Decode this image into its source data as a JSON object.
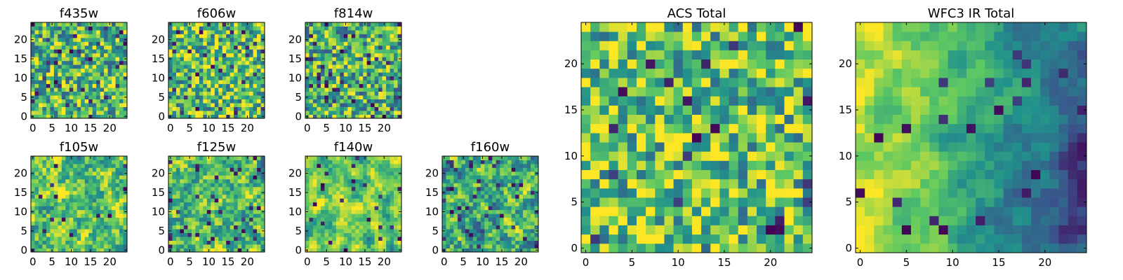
{
  "figure": {
    "colormap": [
      "#440154",
      "#3b528b",
      "#21918c",
      "#5ec962",
      "#fde725"
    ],
    "background": "#ffffff"
  },
  "chart_data": [
    {
      "type": "heatmap",
      "title": "f435w",
      "grid_size": 25,
      "seed": 11,
      "smooth": 0,
      "bias": 0.05,
      "dark_fraction": 0.06,
      "xticks": [
        0,
        5,
        10,
        15,
        20
      ],
      "yticks": [
        0,
        5,
        10,
        15,
        20
      ],
      "tick_labels": {
        "x": [
          "0",
          "5",
          "10",
          "15",
          "20"
        ],
        "y": [
          "0",
          "5",
          "10",
          "15",
          "20"
        ]
      },
      "xlim": [
        0,
        25
      ],
      "ylim": [
        0,
        25
      ]
    },
    {
      "type": "heatmap",
      "title": "f606w",
      "grid_size": 25,
      "seed": 23,
      "smooth": 0,
      "bias": 0.08,
      "dark_fraction": 0.05,
      "xticks": [
        0,
        5,
        10,
        15,
        20
      ],
      "yticks": [
        0,
        5,
        10,
        15,
        20
      ],
      "tick_labels": {
        "x": [
          "0",
          "5",
          "10",
          "15",
          "20"
        ],
        "y": [
          "0",
          "5",
          "10",
          "15",
          "20"
        ]
      },
      "xlim": [
        0,
        25
      ],
      "ylim": [
        0,
        25
      ]
    },
    {
      "type": "heatmap",
      "title": "f814w",
      "grid_size": 25,
      "seed": 37,
      "smooth": 0,
      "bias": 0.02,
      "dark_fraction": 0.07,
      "xticks": [
        0,
        5,
        10,
        15,
        20
      ],
      "yticks": [
        0,
        5,
        10,
        15,
        20
      ],
      "tick_labels": {
        "x": [
          "0",
          "5",
          "10",
          "15",
          "20"
        ],
        "y": [
          "0",
          "5",
          "10",
          "15",
          "20"
        ]
      },
      "xlim": [
        0,
        25
      ],
      "ylim": [
        0,
        25
      ]
    },
    {
      "type": "heatmap",
      "title": "f105w",
      "grid_size": 25,
      "seed": 41,
      "smooth": 1,
      "bias": 0.1,
      "dark_fraction": 0.03,
      "xticks": [
        0,
        5,
        10,
        15,
        20
      ],
      "yticks": [
        0,
        5,
        10,
        15,
        20
      ],
      "tick_labels": {
        "x": [
          "0",
          "5",
          "10",
          "15",
          "20"
        ],
        "y": [
          "0",
          "5",
          "10",
          "15",
          "20"
        ]
      },
      "xlim": [
        0,
        25
      ],
      "ylim": [
        0,
        25
      ]
    },
    {
      "type": "heatmap",
      "title": "f125w",
      "grid_size": 25,
      "seed": 53,
      "smooth": 1,
      "bias": 0.05,
      "dark_fraction": 0.05,
      "xticks": [
        0,
        5,
        10,
        15,
        20
      ],
      "yticks": [
        0,
        5,
        10,
        15,
        20
      ],
      "tick_labels": {
        "x": [
          "0",
          "5",
          "10",
          "15",
          "20"
        ],
        "y": [
          "0",
          "5",
          "10",
          "15",
          "20"
        ]
      },
      "xlim": [
        0,
        25
      ],
      "ylim": [
        0,
        25
      ]
    },
    {
      "type": "heatmap",
      "title": "f140w",
      "grid_size": 25,
      "seed": 67,
      "smooth": 2,
      "bias": 0.12,
      "dark_fraction": 0.03,
      "xticks": [
        0,
        5,
        10,
        15,
        20
      ],
      "yticks": [
        0,
        5,
        10,
        15,
        20
      ],
      "tick_labels": {
        "x": [
          "0",
          "5",
          "10",
          "15",
          "20"
        ],
        "y": [
          "0",
          "5",
          "10",
          "15",
          "20"
        ]
      },
      "xlim": [
        0,
        25
      ],
      "ylim": [
        0,
        25
      ]
    },
    {
      "type": "heatmap",
      "title": "f160w",
      "grid_size": 25,
      "seed": 79,
      "smooth": 1,
      "bias": 0.0,
      "dark_fraction": 0.06,
      "xticks": [
        0,
        5,
        10,
        15,
        20
      ],
      "yticks": [
        0,
        5,
        10,
        15,
        20
      ],
      "tick_labels": {
        "x": [
          "0",
          "5",
          "10",
          "15",
          "20"
        ],
        "y": [
          "0",
          "5",
          "10",
          "15",
          "20"
        ]
      },
      "xlim": [
        0,
        25
      ],
      "ylim": [
        0,
        25
      ]
    },
    {
      "type": "heatmap",
      "title": "ACS Total",
      "grid_size": 25,
      "seed": 97,
      "smooth": 0,
      "bias": 0.1,
      "dark_fraction": 0.03,
      "xticks": [
        0,
        5,
        10,
        15,
        20
      ],
      "yticks": [
        0,
        5,
        10,
        15,
        20
      ],
      "tick_labels": {
        "x": [
          "0",
          "5",
          "10",
          "15",
          "20"
        ],
        "y": [
          "0",
          "5",
          "10",
          "15",
          "20"
        ]
      },
      "xlim": [
        0,
        25
      ],
      "ylim": [
        0,
        25
      ]
    },
    {
      "type": "heatmap",
      "title": "WFC3 IR Total",
      "grid_size": 25,
      "seed": 113,
      "smooth": 2,
      "bias": 0.0,
      "dark_fraction": 0.05,
      "gradient": true,
      "xticks": [
        0,
        5,
        10,
        15,
        20
      ],
      "yticks": [
        0,
        5,
        10,
        15,
        20
      ],
      "tick_labels": {
        "x": [
          "0",
          "5",
          "10",
          "15",
          "20"
        ],
        "y": [
          "0",
          "5",
          "10",
          "15",
          "20"
        ]
      },
      "xlim": [
        0,
        25
      ],
      "ylim": [
        0,
        25
      ]
    }
  ]
}
